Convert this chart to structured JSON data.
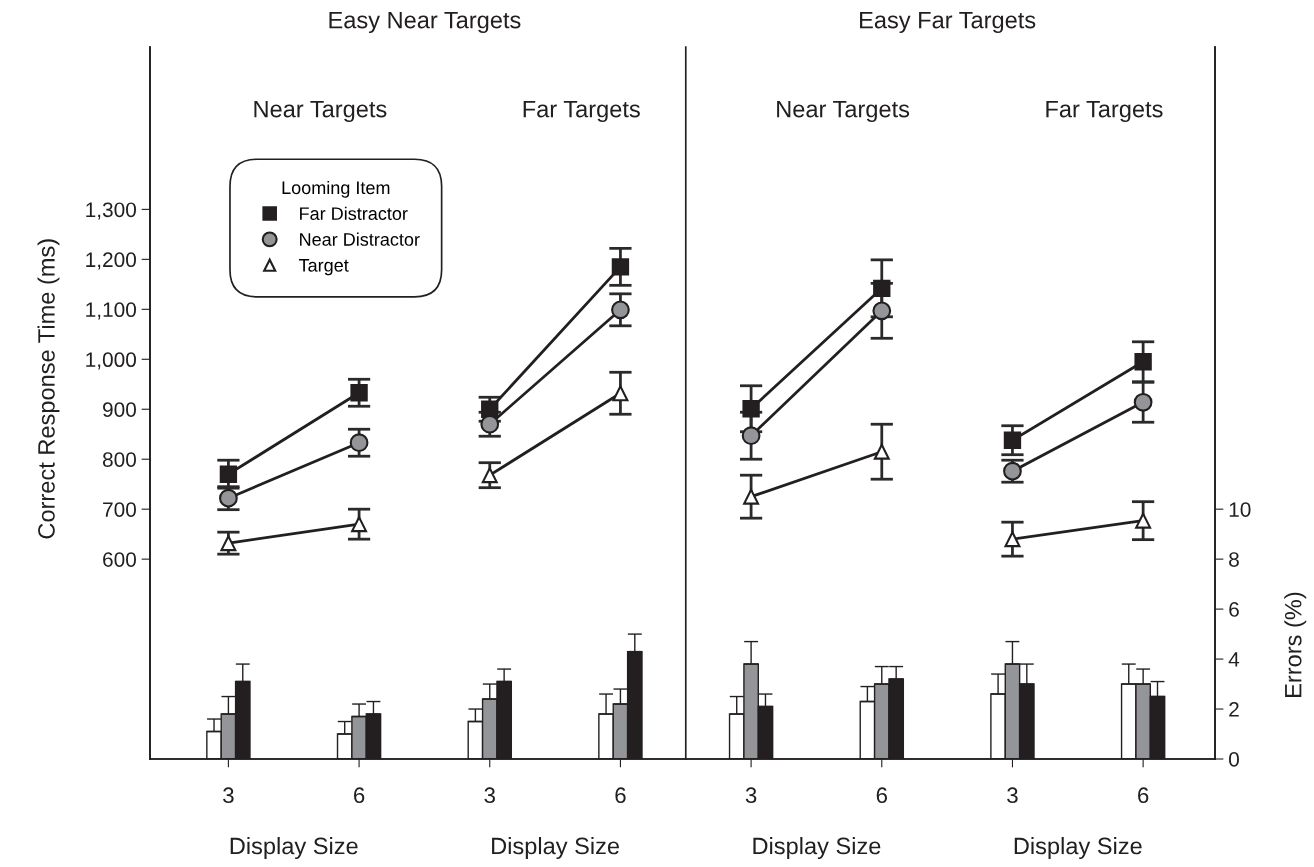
{
  "chart_data": {
    "type": "line",
    "ylabel": "Correct Response Time (ms)",
    "y2label": "Errors (%)",
    "categories": [
      "3",
      "6",
      "3",
      "6",
      "3",
      "6",
      "3",
      "6"
    ],
    "ylim": [
      200,
      1625
    ],
    "yticks": [
      {
        "value": 600,
        "label": "600"
      },
      {
        "value": 700,
        "label": "700"
      },
      {
        "value": 800,
        "label": "800"
      },
      {
        "value": 900,
        "label": "900"
      },
      {
        "value": 1000,
        "label": "1,000"
      },
      {
        "value": 1100,
        "label": "1,100"
      },
      {
        "value": 1200,
        "label": "1,200"
      },
      {
        "value": 1300,
        "label": "1,300"
      }
    ],
    "y2lim": [
      0,
      28.5
    ],
    "y2ticks": [
      0,
      2,
      4,
      6,
      8,
      10
    ],
    "legend": "top left",
    "legend_title": "Looming Item",
    "annotations": [
      "Easy Near Targets",
      "Easy Far Targets",
      "Near Targets",
      "Far Targets",
      "Near Targets",
      "Far Targets",
      "Display Size",
      "Display Size",
      "Display Size",
      "Display Size"
    ],
    "series": [
      {
        "type": "bar",
        "axis": "y2",
        "color": "#ffffff",
        "values": [
          1.1,
          1.0,
          1.5,
          1.8,
          1.8,
          2.3,
          2.6,
          3.0
        ],
        "errors": [
          [
            1.1,
            1.6
          ],
          [
            1.0,
            1.5
          ],
          [
            1.5,
            2.0
          ],
          [
            1.8,
            2.6
          ],
          [
            1.8,
            2.5
          ],
          [
            2.3,
            2.9
          ],
          [
            2.6,
            3.4
          ],
          [
            3.0,
            3.8
          ]
        ]
      },
      {
        "type": "bar",
        "axis": "y2",
        "color": "#939598",
        "values": [
          1.8,
          1.7,
          2.4,
          2.2,
          3.8,
          3.0,
          3.8,
          3.0
        ],
        "errors": [
          [
            1.8,
            2.5
          ],
          [
            1.7,
            2.2
          ],
          [
            2.4,
            3.0
          ],
          [
            2.2,
            2.8
          ],
          [
            3.8,
            4.7
          ],
          [
            3.0,
            3.7
          ],
          [
            3.8,
            4.7
          ],
          [
            3.0,
            3.6
          ]
        ]
      },
      {
        "type": "bar",
        "axis": "y2",
        "color": "#231f20",
        "values": [
          3.1,
          1.8,
          3.1,
          4.3,
          2.1,
          3.2,
          3.0,
          2.5
        ],
        "errors": [
          [
            3.1,
            3.8
          ],
          [
            1.8,
            2.3
          ],
          [
            3.1,
            3.6
          ],
          [
            4.3,
            5.0
          ],
          [
            2.1,
            2.6
          ],
          [
            3.2,
            3.7
          ],
          [
            3.0,
            3.8
          ],
          [
            2.5,
            3.1
          ]
        ]
      },
      {
        "type": "line",
        "name": "Far Distractor",
        "marker": "square",
        "color": "#231f20",
        "values": [
          770,
          933,
          900,
          1185,
          901,
          1142,
          838,
          995
        ],
        "errors": [
          28,
          27,
          24,
          37,
          46,
          57,
          29,
          40
        ]
      },
      {
        "type": "line",
        "name": "Near Distractor",
        "marker": "circle",
        "color": "#939598",
        "values": [
          722,
          833,
          870,
          1099,
          847,
          1097,
          776,
          914
        ],
        "errors": [
          23,
          27,
          24,
          32,
          47,
          55,
          22,
          40
        ]
      },
      {
        "type": "line",
        "name": "Target",
        "marker": "triangle",
        "color": "#ffffff",
        "values": [
          632,
          670,
          768,
          932,
          725,
          815,
          640,
          677
        ],
        "errors": [
          22,
          30,
          25,
          42,
          43,
          55,
          34,
          38
        ]
      }
    ]
  }
}
